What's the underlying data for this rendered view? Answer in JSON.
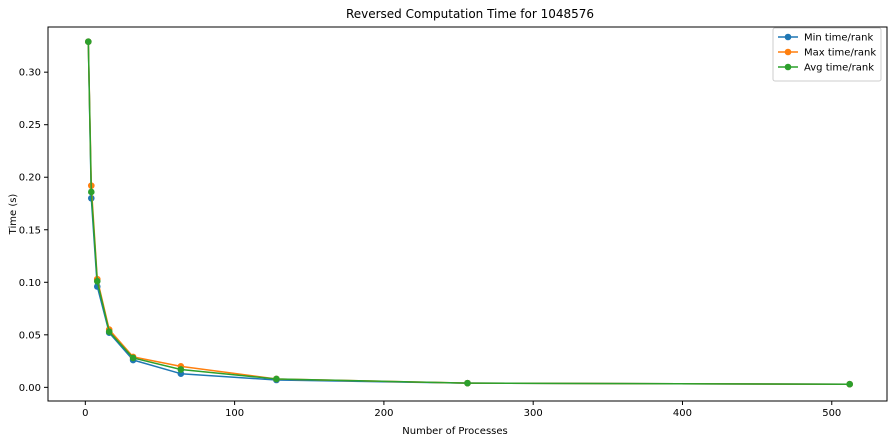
{
  "chart_data": {
    "type": "line",
    "title": "Reversed Computation Time for 1048576",
    "xlabel": "Number of Processes",
    "ylabel": "Time (s)",
    "xlim": [
      -25,
      537
    ],
    "ylim": [
      -0.013,
      0.343
    ],
    "xticks": [
      0,
      100,
      200,
      300,
      400,
      500
    ],
    "xtick_labels": [
      "0",
      "100",
      "200",
      "300",
      "400",
      "500"
    ],
    "yticks": [
      0.0,
      0.05,
      0.1,
      0.15,
      0.2,
      0.25,
      0.3
    ],
    "ytick_labels": [
      "0.00",
      "0.05",
      "0.10",
      "0.15",
      "0.20",
      "0.25",
      "0.30"
    ],
    "grid": false,
    "legend_position": "top-right",
    "x": [
      2,
      4,
      8,
      16,
      32,
      64,
      128,
      256,
      512
    ],
    "series": [
      {
        "name": "Min time/rank",
        "color": "#1f77b4",
        "marker": "circle",
        "values": [
          0.329,
          0.18,
          0.096,
          0.052,
          0.026,
          0.013,
          0.007,
          0.004,
          0.003
        ]
      },
      {
        "name": "Max time/rank",
        "color": "#ff7f0e",
        "marker": "circle",
        "values": [
          0.329,
          0.192,
          0.103,
          0.055,
          0.029,
          0.02,
          0.008,
          0.004,
          0.003
        ]
      },
      {
        "name": "Avg time/rank",
        "color": "#2ca02c",
        "marker": "circle",
        "values": [
          0.329,
          0.186,
          0.101,
          0.053,
          0.028,
          0.017,
          0.008,
          0.004,
          0.003
        ]
      }
    ]
  }
}
